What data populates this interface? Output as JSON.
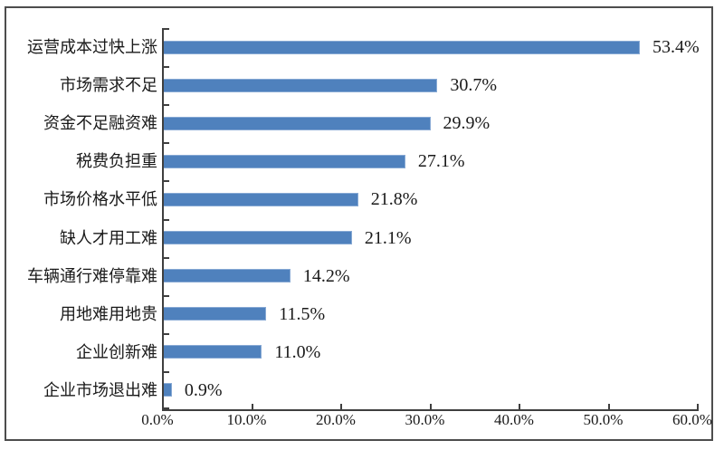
{
  "chart_data": {
    "type": "bar",
    "orientation": "horizontal",
    "title": "",
    "xlabel": "",
    "ylabel": "",
    "categories": [
      "运营成本过快上涨",
      "市场需求不足",
      "资金不足融资难",
      "税费负担重",
      "市场价格水平低",
      "缺人才用工难",
      "车辆通行难停靠难",
      "用地难用地贵",
      "企业创新难",
      "企业市场退出难"
    ],
    "values": [
      53.4,
      30.7,
      29.9,
      27.1,
      21.8,
      21.1,
      14.2,
      11.5,
      11.0,
      0.9
    ],
    "value_labels": [
      "53.4%",
      "30.7%",
      "29.9%",
      "27.1%",
      "21.8%",
      "21.1%",
      "14.2%",
      "11.5%",
      "11.0%",
      "0.9%"
    ],
    "x_ticks": [
      "0.0%",
      "10.0%",
      "20.0%",
      "30.0%",
      "40.0%",
      "50.0%",
      "60.0%"
    ],
    "xlim": [
      0,
      60
    ],
    "grid": false,
    "legend": null,
    "colors": {
      "bar_fill": "#4f81bd",
      "bar_border": "#87a9d4",
      "axis": "#3f3f3f",
      "frame_border": "#4d4d4d",
      "text": "#1a1a1a",
      "background": "#ffffff"
    }
  }
}
